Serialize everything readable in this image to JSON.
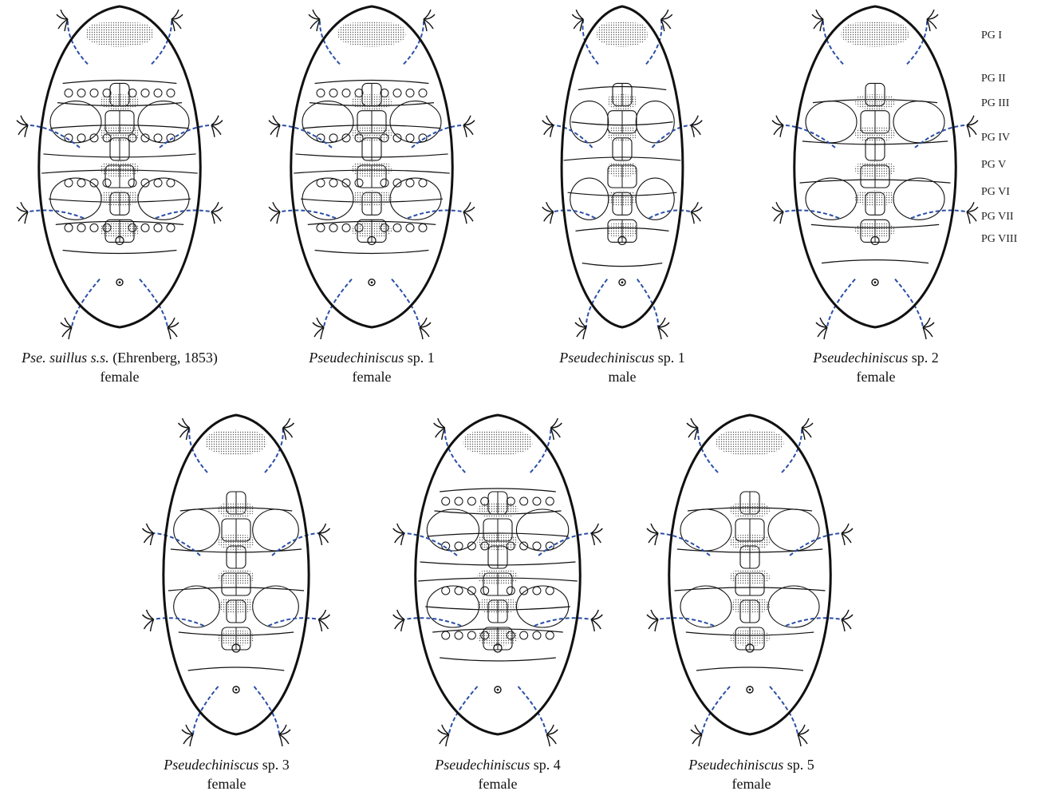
{
  "specimens": [
    {
      "name": "Pse. suillus s.s.",
      "rest": " (Ehrenberg, 1853)",
      "sex": "female",
      "style": "dense"
    },
    {
      "name": "Pseudechiniscus",
      "rest": " sp. 1",
      "sex": "female",
      "style": "banded"
    },
    {
      "name": "Pseudechiniscus",
      "rest": " sp. 1",
      "sex": "male",
      "style": "slim"
    },
    {
      "name": "Pseudechiniscus",
      "rest": " sp. 2",
      "sex": "female",
      "style": "plain"
    },
    {
      "name": "Pseudechiniscus",
      "rest": " sp. 3",
      "sex": "female",
      "style": "plain"
    },
    {
      "name": "Pseudechiniscus",
      "rest": " sp. 4",
      "sex": "female",
      "style": "dense"
    },
    {
      "name": "Pseudechiniscus",
      "rest": " sp. 5",
      "sex": "female",
      "style": "plain"
    }
  ],
  "pg_labels": [
    "PG I",
    "PG II",
    "PG III",
    "PG IV",
    "PG V",
    "PG VI",
    "PG VII",
    "PG VIII"
  ],
  "colors": {
    "outline": "#111111",
    "leg": "#2a4fa8",
    "stipple": "#555555"
  }
}
